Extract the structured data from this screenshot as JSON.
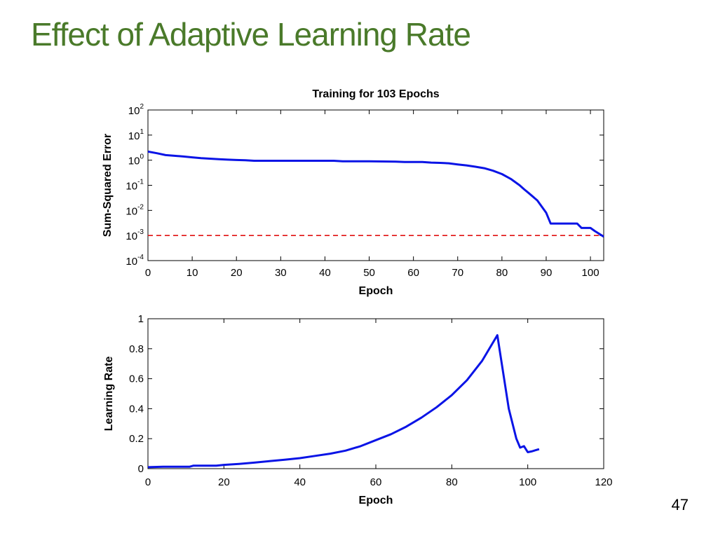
{
  "slide": {
    "title": "Effect of Adaptive Learning Rate",
    "page_number": "47",
    "title_color": "#4a7a2a"
  },
  "chart_data": [
    {
      "type": "line",
      "title": "Training for 103 Epochs",
      "xlabel": "Epoch",
      "ylabel": "Sum-Squared Error",
      "yscale": "log",
      "xlim": [
        0,
        103
      ],
      "ylim": [
        0.0001,
        100
      ],
      "xticks": [
        0,
        10,
        20,
        30,
        40,
        50,
        60,
        70,
        80,
        90,
        100
      ],
      "yticks": [
        {
          "base": "10",
          "exp": "2",
          "value": 100
        },
        {
          "base": "10",
          "exp": "1",
          "value": 10
        },
        {
          "base": "10",
          "exp": "0",
          "value": 1
        },
        {
          "base": "10",
          "exp": "-1",
          "value": 0.1
        },
        {
          "base": "10",
          "exp": "-2",
          "value": 0.01
        },
        {
          "base": "10",
          "exp": "-3",
          "value": 0.001
        },
        {
          "base": "10",
          "exp": "-4",
          "value": 0.0001
        }
      ],
      "grid": false,
      "series": [
        {
          "color": "#0a14e6",
          "x": [
            0,
            2,
            4,
            6,
            8,
            10,
            12,
            14,
            16,
            18,
            20,
            22,
            24,
            30,
            36,
            42,
            44,
            50,
            56,
            58,
            62,
            64,
            66,
            68,
            70,
            72,
            74,
            76,
            78,
            80,
            82,
            84,
            85,
            86,
            88,
            90,
            91,
            94,
            97,
            98,
            100,
            101,
            103
          ],
          "y": [
            2.2,
            1.9,
            1.6,
            1.5,
            1.4,
            1.3,
            1.2,
            1.15,
            1.1,
            1.05,
            1.02,
            1.0,
            0.95,
            0.95,
            0.95,
            0.95,
            0.9,
            0.9,
            0.88,
            0.85,
            0.85,
            0.8,
            0.78,
            0.75,
            0.68,
            0.62,
            0.55,
            0.48,
            0.38,
            0.28,
            0.18,
            0.1,
            0.07,
            0.05,
            0.025,
            0.008,
            0.003,
            0.003,
            0.003,
            0.002,
            0.002,
            0.0015,
            0.0009
          ]
        }
      ],
      "reference_line": {
        "y": 0.001,
        "color": "#e01010",
        "style": "dashed"
      }
    },
    {
      "type": "line",
      "title": "",
      "xlabel": "Epoch",
      "ylabel": "Learning Rate",
      "xlim": [
        0,
        120
      ],
      "ylim": [
        0,
        1
      ],
      "xticks": [
        0,
        20,
        40,
        60,
        80,
        100,
        120
      ],
      "yticks": [
        0,
        0.2,
        0.4,
        0.6,
        0.8,
        1
      ],
      "ytick_labels": [
        "0",
        "0.2",
        "0.4",
        "0.6",
        "0.8",
        "1"
      ],
      "grid": false,
      "series": [
        {
          "color": "#0a14e6",
          "x": [
            0,
            4,
            8,
            11,
            12,
            18,
            20,
            24,
            28,
            32,
            36,
            40,
            44,
            48,
            52,
            56,
            60,
            64,
            68,
            72,
            76,
            80,
            84,
            88,
            92,
            95,
            97,
            98,
            99,
            100,
            101,
            103
          ],
          "y": [
            0.01,
            0.013,
            0.013,
            0.013,
            0.02,
            0.02,
            0.025,
            0.032,
            0.04,
            0.05,
            0.06,
            0.07,
            0.085,
            0.1,
            0.12,
            0.15,
            0.19,
            0.23,
            0.28,
            0.34,
            0.41,
            0.49,
            0.59,
            0.72,
            0.89,
            0.4,
            0.2,
            0.14,
            0.15,
            0.11,
            0.115,
            0.13
          ]
        }
      ]
    }
  ]
}
